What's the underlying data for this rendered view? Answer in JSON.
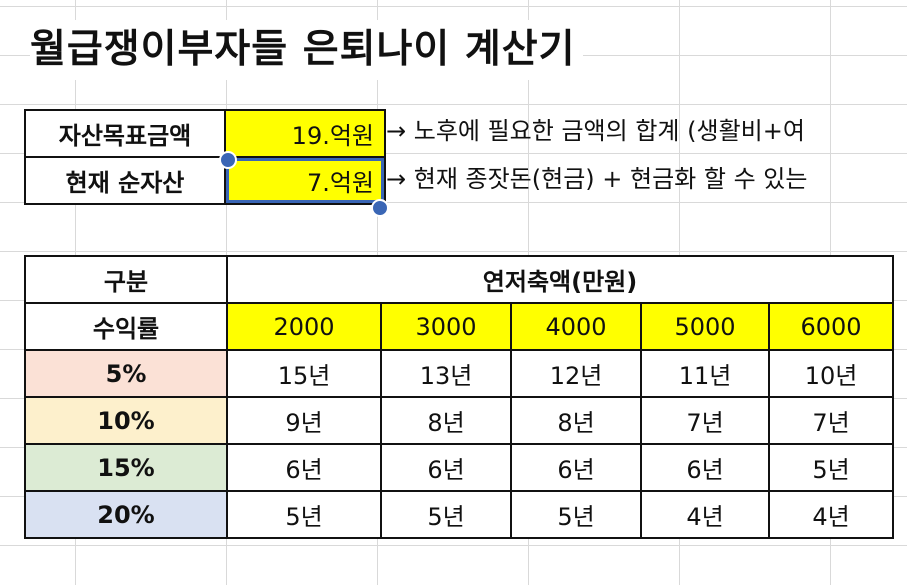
{
  "title": "월급쟁이부자들 은퇴나이 계산기",
  "inputs": [
    {
      "label": "자산목표금액",
      "value": "19.억원",
      "note": "→ 노후에 필요한 금액의 합계 (생활비+여"
    },
    {
      "label": "현재 순자산",
      "value": "7.억원",
      "note": "→ 현재 종잣돈(현금) + 현금화 할 수 있는"
    }
  ],
  "table": {
    "corner_top": "구분",
    "corner_bottom": "수익률",
    "group_header": "연저축액(만원)",
    "columns": [
      "2000",
      "3000",
      "4000",
      "5000",
      "6000"
    ],
    "rows": [
      {
        "rate": "5%",
        "color": "#fbe1d6",
        "values": [
          "15년",
          "13년",
          "12년",
          "11년",
          "10년"
        ]
      },
      {
        "rate": "10%",
        "color": "#fdf0cc",
        "values": [
          "9년",
          "8년",
          "8년",
          "7년",
          "7년"
        ]
      },
      {
        "rate": "15%",
        "color": "#dcebd4",
        "values": [
          "6년",
          "6년",
          "6년",
          "6년",
          "5년"
        ]
      },
      {
        "rate": "20%",
        "color": "#d9e1f2",
        "values": [
          "5년",
          "5년",
          "5년",
          "4년",
          "4년"
        ]
      }
    ]
  },
  "colors": {
    "input_fill": "#ffff00",
    "selection": "#3a66b5"
  }
}
